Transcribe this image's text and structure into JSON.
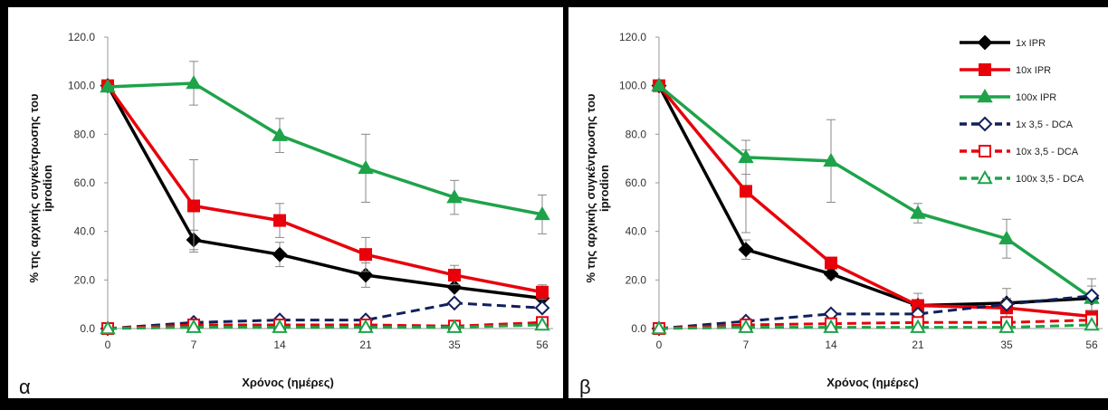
{
  "panels": [
    {
      "letter": "α",
      "ylabel_line1": "% της αρχικής συγκέντρωσης του",
      "ylabel_line2": "iprodion",
      "xlabel": "Χρόνος (ημέρες)"
    },
    {
      "letter": "β",
      "ylabel_line1": "% της αρχικής συγκέντρωσης του",
      "ylabel_line2": "iprodion",
      "xlabel": "Χρόνος (ημέρες)"
    }
  ],
  "chart_data": [
    {
      "type": "line",
      "panel_label": "α",
      "xlabel": "Χρόνος (ημέρες)",
      "ylabel": "% της αρχικής συγκέντρωσης του iprodion",
      "categories": [
        "0",
        "7",
        "14",
        "21",
        "35",
        "56"
      ],
      "y_ticks": [
        "0.0",
        "20.0",
        "40.0",
        "60.0",
        "80.0",
        "100.0",
        "120.0"
      ],
      "ylim": [
        0,
        120
      ],
      "grid": false,
      "legend": "none",
      "series": [
        {
          "key": "s1",
          "color": "#000000",
          "marker": "diamond",
          "filled": true,
          "dashed": false,
          "values": [
            100,
            36.5,
            30.5,
            22,
            17,
            12.5
          ],
          "errors": [
            0,
            4,
            5,
            5,
            0,
            0
          ]
        },
        {
          "key": "s2",
          "color": "#e8000b",
          "marker": "square",
          "filled": true,
          "dashed": false,
          "values": [
            100,
            50.5,
            44.5,
            30.5,
            22,
            15
          ],
          "errors": [
            0,
            19,
            7,
            7,
            4,
            3
          ]
        },
        {
          "key": "s3",
          "color": "#1ea34a",
          "marker": "triangle",
          "filled": true,
          "dashed": false,
          "values": [
            99.5,
            101,
            79.5,
            66,
            54,
            47
          ],
          "errors": [
            0,
            9,
            7,
            14,
            7,
            8
          ]
        },
        {
          "key": "s4",
          "color": "#10205a",
          "marker": "diamond",
          "filled": false,
          "dashed": true,
          "values": [
            0,
            2.5,
            3.5,
            3.5,
            10.5,
            8.5
          ],
          "errors": [
            0,
            1,
            1,
            1,
            1,
            1
          ]
        },
        {
          "key": "s5",
          "color": "#e8000b",
          "marker": "square",
          "filled": false,
          "dashed": true,
          "values": [
            0,
            1.5,
            1.5,
            1.5,
            1,
            2.5
          ],
          "errors": [
            0,
            1,
            1,
            1,
            1,
            1
          ]
        },
        {
          "key": "s6",
          "color": "#1ea34a",
          "marker": "triangle",
          "filled": false,
          "dashed": true,
          "values": [
            0,
            0.5,
            0.5,
            0.5,
            0.5,
            1.5
          ],
          "errors": [
            0,
            0,
            0,
            0,
            0,
            0
          ]
        }
      ]
    },
    {
      "type": "line",
      "panel_label": "β",
      "xlabel": "Χρόνος (ημέρες)",
      "ylabel": "% της αρχικής συγκέντρωσης του iprodion",
      "categories": [
        "0",
        "7",
        "14",
        "21",
        "35",
        "56"
      ],
      "y_ticks": [
        "0.0",
        "20.0",
        "40.0",
        "60.0",
        "80.0",
        "100.0",
        "120.0"
      ],
      "ylim": [
        0,
        120
      ],
      "grid": false,
      "legend": "top-right",
      "series": [
        {
          "key": "s1",
          "name": "1x IPR",
          "color": "#000000",
          "marker": "diamond",
          "filled": true,
          "dashed": false,
          "values": [
            100,
            32.5,
            22.5,
            9.5,
            10.5,
            12.5
          ],
          "errors": [
            0,
            4,
            2,
            5,
            6,
            8
          ]
        },
        {
          "key": "s2",
          "name": "10x IPR",
          "color": "#e8000b",
          "marker": "square",
          "filled": true,
          "dashed": false,
          "values": [
            100,
            56.5,
            27,
            9.5,
            8.5,
            5
          ],
          "errors": [
            0,
            17,
            2,
            2,
            4,
            2
          ]
        },
        {
          "key": "s3",
          "name": "100x IPR",
          "color": "#1ea34a",
          "marker": "triangle",
          "filled": true,
          "dashed": false,
          "values": [
            100,
            70.5,
            69,
            47.5,
            37,
            12.5
          ],
          "errors": [
            0,
            7,
            17,
            4,
            8,
            5
          ]
        },
        {
          "key": "s4",
          "name": "1x 3,5 - DCA",
          "color": "#10205a",
          "marker": "diamond",
          "filled": false,
          "dashed": true,
          "values": [
            0,
            3,
            6,
            6,
            10,
            13.5
          ],
          "errors": [
            0,
            1,
            1,
            1,
            1,
            1
          ]
        },
        {
          "key": "s5",
          "name": "10x 3,5 - DCA",
          "color": "#e8000b",
          "marker": "square",
          "filled": false,
          "dashed": true,
          "values": [
            0,
            1.5,
            2,
            2.5,
            2.5,
            3.5
          ],
          "errors": [
            0,
            1,
            1,
            1,
            1,
            1
          ]
        },
        {
          "key": "s6",
          "name": "100x 3,5 - DCA",
          "color": "#1ea34a",
          "marker": "triangle",
          "filled": false,
          "dashed": true,
          "values": [
            0,
            0.5,
            0.5,
            0.5,
            0.5,
            1.5
          ],
          "errors": [
            0,
            0,
            0,
            0,
            0,
            0
          ]
        }
      ]
    }
  ]
}
